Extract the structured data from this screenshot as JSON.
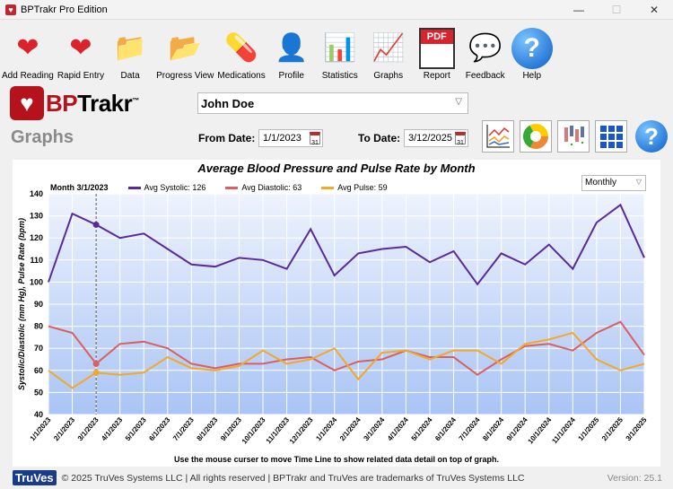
{
  "window": {
    "title": "BPTrakr Pro Edition",
    "minimize": "—",
    "maximize": "☐",
    "close": "✕"
  },
  "toolbar": [
    {
      "label": "Add Reading",
      "icon": "add-reading-icon",
      "glyph": "❤"
    },
    {
      "label": "Rapid Entry",
      "icon": "rapid-entry-icon",
      "glyph": "❤"
    },
    {
      "label": "Data",
      "icon": "data-icon",
      "glyph": "📁"
    },
    {
      "label": "Progress View",
      "icon": "progress-view-icon",
      "glyph": "📂"
    },
    {
      "label": "Medications",
      "icon": "medications-icon",
      "glyph": "💊"
    },
    {
      "label": "Profile",
      "icon": "profile-icon",
      "glyph": "👤"
    },
    {
      "label": "Statistics",
      "icon": "statistics-icon",
      "glyph": "📊"
    },
    {
      "label": "Graphs",
      "icon": "graphs-icon",
      "glyph": "📈"
    },
    {
      "label": "Report",
      "icon": "pdf-report-icon",
      "glyph": "PDF"
    },
    {
      "label": "Feedback",
      "icon": "feedback-icon",
      "glyph": "💬"
    },
    {
      "label": "Help",
      "icon": "help-icon",
      "glyph": "?"
    }
  ],
  "logo": {
    "bp": "BP",
    "trakr": "Trakr",
    "tm": "™"
  },
  "page_title": "Graphs",
  "user": "John Doe",
  "from_label": "From Date:",
  "from_date": "1/1/2023",
  "to_label": "To Date:",
  "to_date": "3/12/2025",
  "calendar_day": "31",
  "help_glyph": "?",
  "chart_data": {
    "type": "line",
    "title": "Average Blood Pressure and Pulse Rate by Month",
    "ylabel": "Systolic/Diastolic (mm Hg), Pulse Rate (bpm)",
    "ylim": [
      40,
      140
    ],
    "yticks": [
      "40",
      "50",
      "60",
      "70",
      "80",
      "90",
      "100",
      "110",
      "120",
      "130",
      "140"
    ],
    "period": "Monthly",
    "cursor_index": 2,
    "cursor_label": "Month 3/1/2023",
    "categories": [
      "1/1/2023",
      "2/1/2023",
      "3/1/2023",
      "4/1/2023",
      "5/1/2023",
      "6/1/2023",
      "7/1/2023",
      "8/1/2023",
      "9/1/2023",
      "10/1/2023",
      "11/1/2023",
      "12/1/2023",
      "1/1/2024",
      "2/1/2024",
      "3/1/2024",
      "4/1/2024",
      "5/1/2024",
      "6/1/2024",
      "7/1/2024",
      "8/1/2024",
      "9/1/2024",
      "10/1/2024",
      "11/1/2024",
      "1/1/2025",
      "2/1/2025",
      "3/1/2025"
    ],
    "series": [
      {
        "name": "Avg Systolic",
        "legend": "Avg Systolic: 126",
        "color": "#5b2a9a",
        "values": [
          100,
          131,
          126,
          120,
          122,
          115,
          108,
          107,
          111,
          110,
          106,
          124,
          103,
          113,
          115,
          116,
          109,
          114,
          99,
          113,
          108,
          117,
          106,
          127,
          135,
          111
        ]
      },
      {
        "name": "Avg Diastolic",
        "legend": "Avg Diastolic: 63",
        "color": "#d9605f",
        "values": [
          80,
          77,
          63,
          72,
          73,
          70,
          63,
          61,
          63,
          63,
          65,
          66,
          60,
          64,
          65,
          69,
          66,
          66,
          58,
          65,
          71,
          72,
          69,
          77,
          82,
          67
        ]
      },
      {
        "name": "Avg Pulse",
        "legend": "Avg Pulse: 59",
        "color": "#f0a92a",
        "values": [
          60,
          52,
          59,
          58,
          59,
          66,
          61,
          60,
          62,
          69,
          63,
          65,
          70,
          56,
          68,
          69,
          65,
          69,
          69,
          63,
          72,
          74,
          77,
          65,
          60,
          63
        ]
      }
    ],
    "note": "Use the mouse curser to move Time Line to show related data detail on top of graph."
  },
  "footer": {
    "brand": "TruVes",
    "copyright": "© 2025 TruVes Systems LLC | All rights reserved | BPTrakr and TruVes are trademarks of TruVes Systems LLC",
    "version": "Version: 25.1"
  }
}
